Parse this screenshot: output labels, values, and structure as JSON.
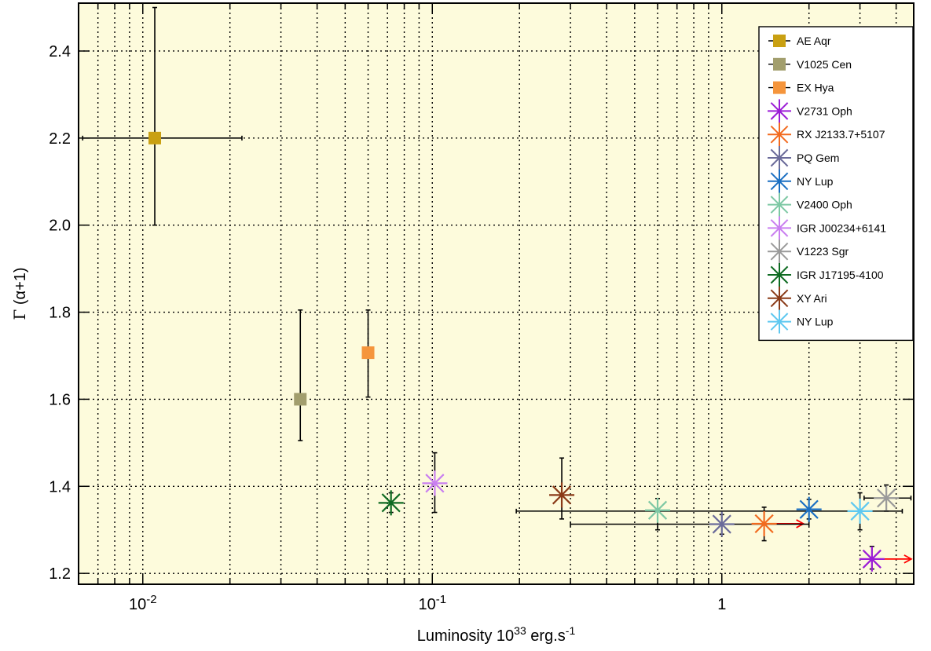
{
  "chart_data": {
    "type": "scatter",
    "title": "",
    "xlabel": {
      "main": "Luminosity 10",
      "sup": "33",
      "unit": " erg.s",
      "unit_sup": "-1"
    },
    "ylabel": {
      "symbol": "Γ",
      "rest": " (α+1)"
    },
    "x_scale": "log",
    "xlim": [
      0.006,
      4.6
    ],
    "ylim": [
      1.175,
      2.51
    ],
    "grid": true,
    "legend_position": "top-right",
    "background_color": "#fdfbdc",
    "x_ticks": [
      {
        "value": 0.01,
        "base": "10",
        "exp": "-2"
      },
      {
        "value": 0.1,
        "base": "10",
        "exp": "-1"
      },
      {
        "value": 1,
        "base": "1",
        "exp": ""
      }
    ],
    "y_ticks": [
      1.2,
      1.4,
      1.6,
      1.8,
      2.0,
      2.2,
      2.4
    ],
    "y_tick_labels": [
      "1.2",
      "1.4",
      "1.6",
      "1.8",
      "2.0",
      "2.2",
      "2.4"
    ],
    "series": [
      {
        "name": "AE Aqr",
        "marker": "square",
        "color": "#c9a012",
        "x": 0.011,
        "y": 2.2,
        "xerr": [
          0.0062,
          0.022
        ],
        "yerr": [
          2.0,
          2.5
        ],
        "upper_limit_x": false
      },
      {
        "name": "V1025 Cen",
        "marker": "square",
        "color": "#a29e6d",
        "x": 0.035,
        "y": 1.6,
        "xerr": null,
        "yerr": [
          1.505,
          1.805
        ],
        "upper_limit_x": false
      },
      {
        "name": "EX Hya",
        "marker": "square",
        "color": "#f5953c",
        "x": 0.06,
        "y": 1.707,
        "xerr": null,
        "yerr": [
          1.605,
          1.805
        ],
        "upper_limit_x": false
      },
      {
        "name": "V2731 Oph",
        "marker": "star",
        "color": "#9b1cd6",
        "x": 3.3,
        "y": 1.233,
        "xerr": null,
        "yerr": [
          1.21,
          1.262
        ],
        "upper_limit_x": true
      },
      {
        "name": "RX J2133.7+5107",
        "marker": "star",
        "color": "#f26a1f",
        "x": 1.4,
        "y": 1.314,
        "xerr": null,
        "yerr": [
          1.275,
          1.352
        ],
        "upper_limit_x": true
      },
      {
        "name": "PQ Gem",
        "marker": "star",
        "color": "#6b6b9a",
        "x": 1.0,
        "y": 1.313,
        "xerr": [
          0.3,
          2.0
        ],
        "yerr": [
          1.29,
          1.335
        ],
        "upper_limit_x": false
      },
      {
        "name": "NY Lup",
        "marker": "star",
        "color": "#1a6fc2",
        "x": 2.0,
        "y": 1.347,
        "xerr": null,
        "yerr": [
          1.325,
          1.37
        ],
        "upper_limit_x": false
      },
      {
        "name": "V2400 Oph",
        "marker": "star",
        "color": "#7ec8a4",
        "x": 0.6,
        "y": 1.345,
        "xerr": null,
        "yerr": [
          1.3,
          1.372
        ],
        "upper_limit_x": false
      },
      {
        "name": "IGR J00234+6141",
        "marker": "star",
        "color": "#c97ff0",
        "x": 0.102,
        "y": 1.407,
        "xerr": null,
        "yerr": [
          1.34,
          1.477
        ],
        "upper_limit_x": false
      },
      {
        "name": "V1223 Sgr",
        "marker": "star",
        "color": "#9a9a9a",
        "x": 3.7,
        "y": 1.373,
        "xerr": [
          3.1,
          4.5
        ],
        "yerr": [
          1.343,
          1.403
        ],
        "upper_limit_x": false
      },
      {
        "name": "IGR J17195-4100",
        "marker": "star",
        "color": "#0f6b22",
        "x": 0.072,
        "y": 1.362,
        "xerr": null,
        "yerr": [
          1.34,
          1.385
        ],
        "upper_limit_x": false
      },
      {
        "name": "XY Ari",
        "marker": "star",
        "color": "#8a3a17",
        "x": 0.28,
        "y": 1.38,
        "xerr": null,
        "yerr": [
          1.325,
          1.465
        ],
        "upper_limit_x": false
      },
      {
        "name": "NY Lup",
        "marker": "star",
        "color": "#5ec8f0",
        "x": 3.0,
        "y": 1.343,
        "xerr": [
          0.195,
          4.2
        ],
        "yerr": [
          1.3,
          1.385
        ],
        "upper_limit_x": false
      }
    ],
    "arrow_color": "#ff0000",
    "errorbar_color": "#000000"
  }
}
